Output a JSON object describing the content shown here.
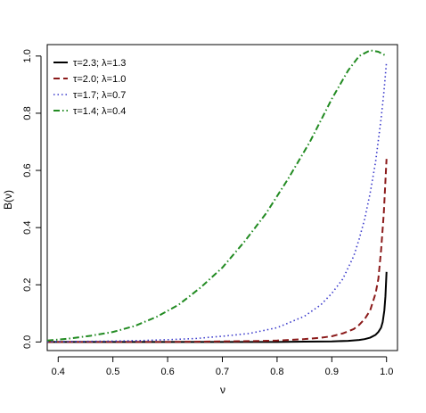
{
  "chart_data": {
    "type": "line",
    "title": "",
    "xlabel": "ν",
    "ylabel": "B(ν)",
    "xlim": [
      0.38,
      1.02
    ],
    "ylim": [
      -0.03,
      1.04
    ],
    "xticks": [
      0.4,
      0.5,
      0.6,
      0.7,
      0.8,
      0.9,
      1.0
    ],
    "xtick_labels": [
      "0.4",
      "0.5",
      "0.6",
      "0.7",
      "0.8",
      "0.9",
      "1.0"
    ],
    "yticks": [
      0.0,
      0.2,
      0.4,
      0.6,
      0.8,
      1.0
    ],
    "ytick_labels": [
      "0.0",
      "0.2",
      "0.4",
      "0.6",
      "0.8",
      "1.0"
    ],
    "grid": false,
    "legend_position": "top-left",
    "series": [
      {
        "name": "τ=2.3; λ=1.3",
        "color": "#000000",
        "line_style": "solid",
        "x": [
          0.38,
          0.5,
          0.6,
          0.7,
          0.8,
          0.85,
          0.9,
          0.93,
          0.95,
          0.96,
          0.97,
          0.98,
          0.985,
          0.99,
          0.993,
          0.996,
          0.998,
          1.0
        ],
        "y": [
          0.0,
          0.0,
          0.0,
          0.0,
          0.0,
          0.001,
          0.002,
          0.004,
          0.007,
          0.01,
          0.015,
          0.025,
          0.035,
          0.05,
          0.07,
          0.11,
          0.16,
          0.245
        ]
      },
      {
        "name": "τ=2.0; λ=1.0",
        "color": "#8b1a1a",
        "line_style": "dashed",
        "x": [
          0.38,
          0.5,
          0.6,
          0.7,
          0.75,
          0.8,
          0.85,
          0.88,
          0.9,
          0.92,
          0.94,
          0.95,
          0.96,
          0.97,
          0.98,
          0.985,
          0.99,
          0.995,
          1.0
        ],
        "y": [
          0.0,
          0.0,
          0.0,
          0.002,
          0.003,
          0.005,
          0.01,
          0.015,
          0.02,
          0.03,
          0.045,
          0.06,
          0.08,
          0.11,
          0.17,
          0.22,
          0.32,
          0.45,
          0.64
        ]
      },
      {
        "name": "τ=1.7; λ=0.7",
        "color": "#3a3acb",
        "line_style": "dotted",
        "x": [
          0.38,
          0.45,
          0.5,
          0.55,
          0.6,
          0.65,
          0.7,
          0.75,
          0.8,
          0.85,
          0.88,
          0.9,
          0.92,
          0.94,
          0.95,
          0.96,
          0.97,
          0.98,
          0.99,
          0.995,
          1.0
        ],
        "y": [
          0.001,
          0.002,
          0.003,
          0.005,
          0.008,
          0.012,
          0.02,
          0.03,
          0.05,
          0.09,
          0.13,
          0.17,
          0.22,
          0.3,
          0.36,
          0.43,
          0.52,
          0.63,
          0.78,
          0.87,
          0.98
        ]
      },
      {
        "name": "τ=1.4; λ=0.4",
        "color": "#228b22",
        "line_style": "dashdot",
        "x": [
          0.38,
          0.42,
          0.46,
          0.5,
          0.54,
          0.58,
          0.62,
          0.66,
          0.7,
          0.74,
          0.78,
          0.82,
          0.86,
          0.9,
          0.93,
          0.95,
          0.97,
          0.985,
          1.0
        ],
        "y": [
          0.005,
          0.012,
          0.022,
          0.035,
          0.056,
          0.088,
          0.13,
          0.19,
          0.26,
          0.35,
          0.45,
          0.57,
          0.7,
          0.85,
          0.95,
          1.0,
          1.02,
          1.015,
          1.0
        ]
      }
    ]
  }
}
